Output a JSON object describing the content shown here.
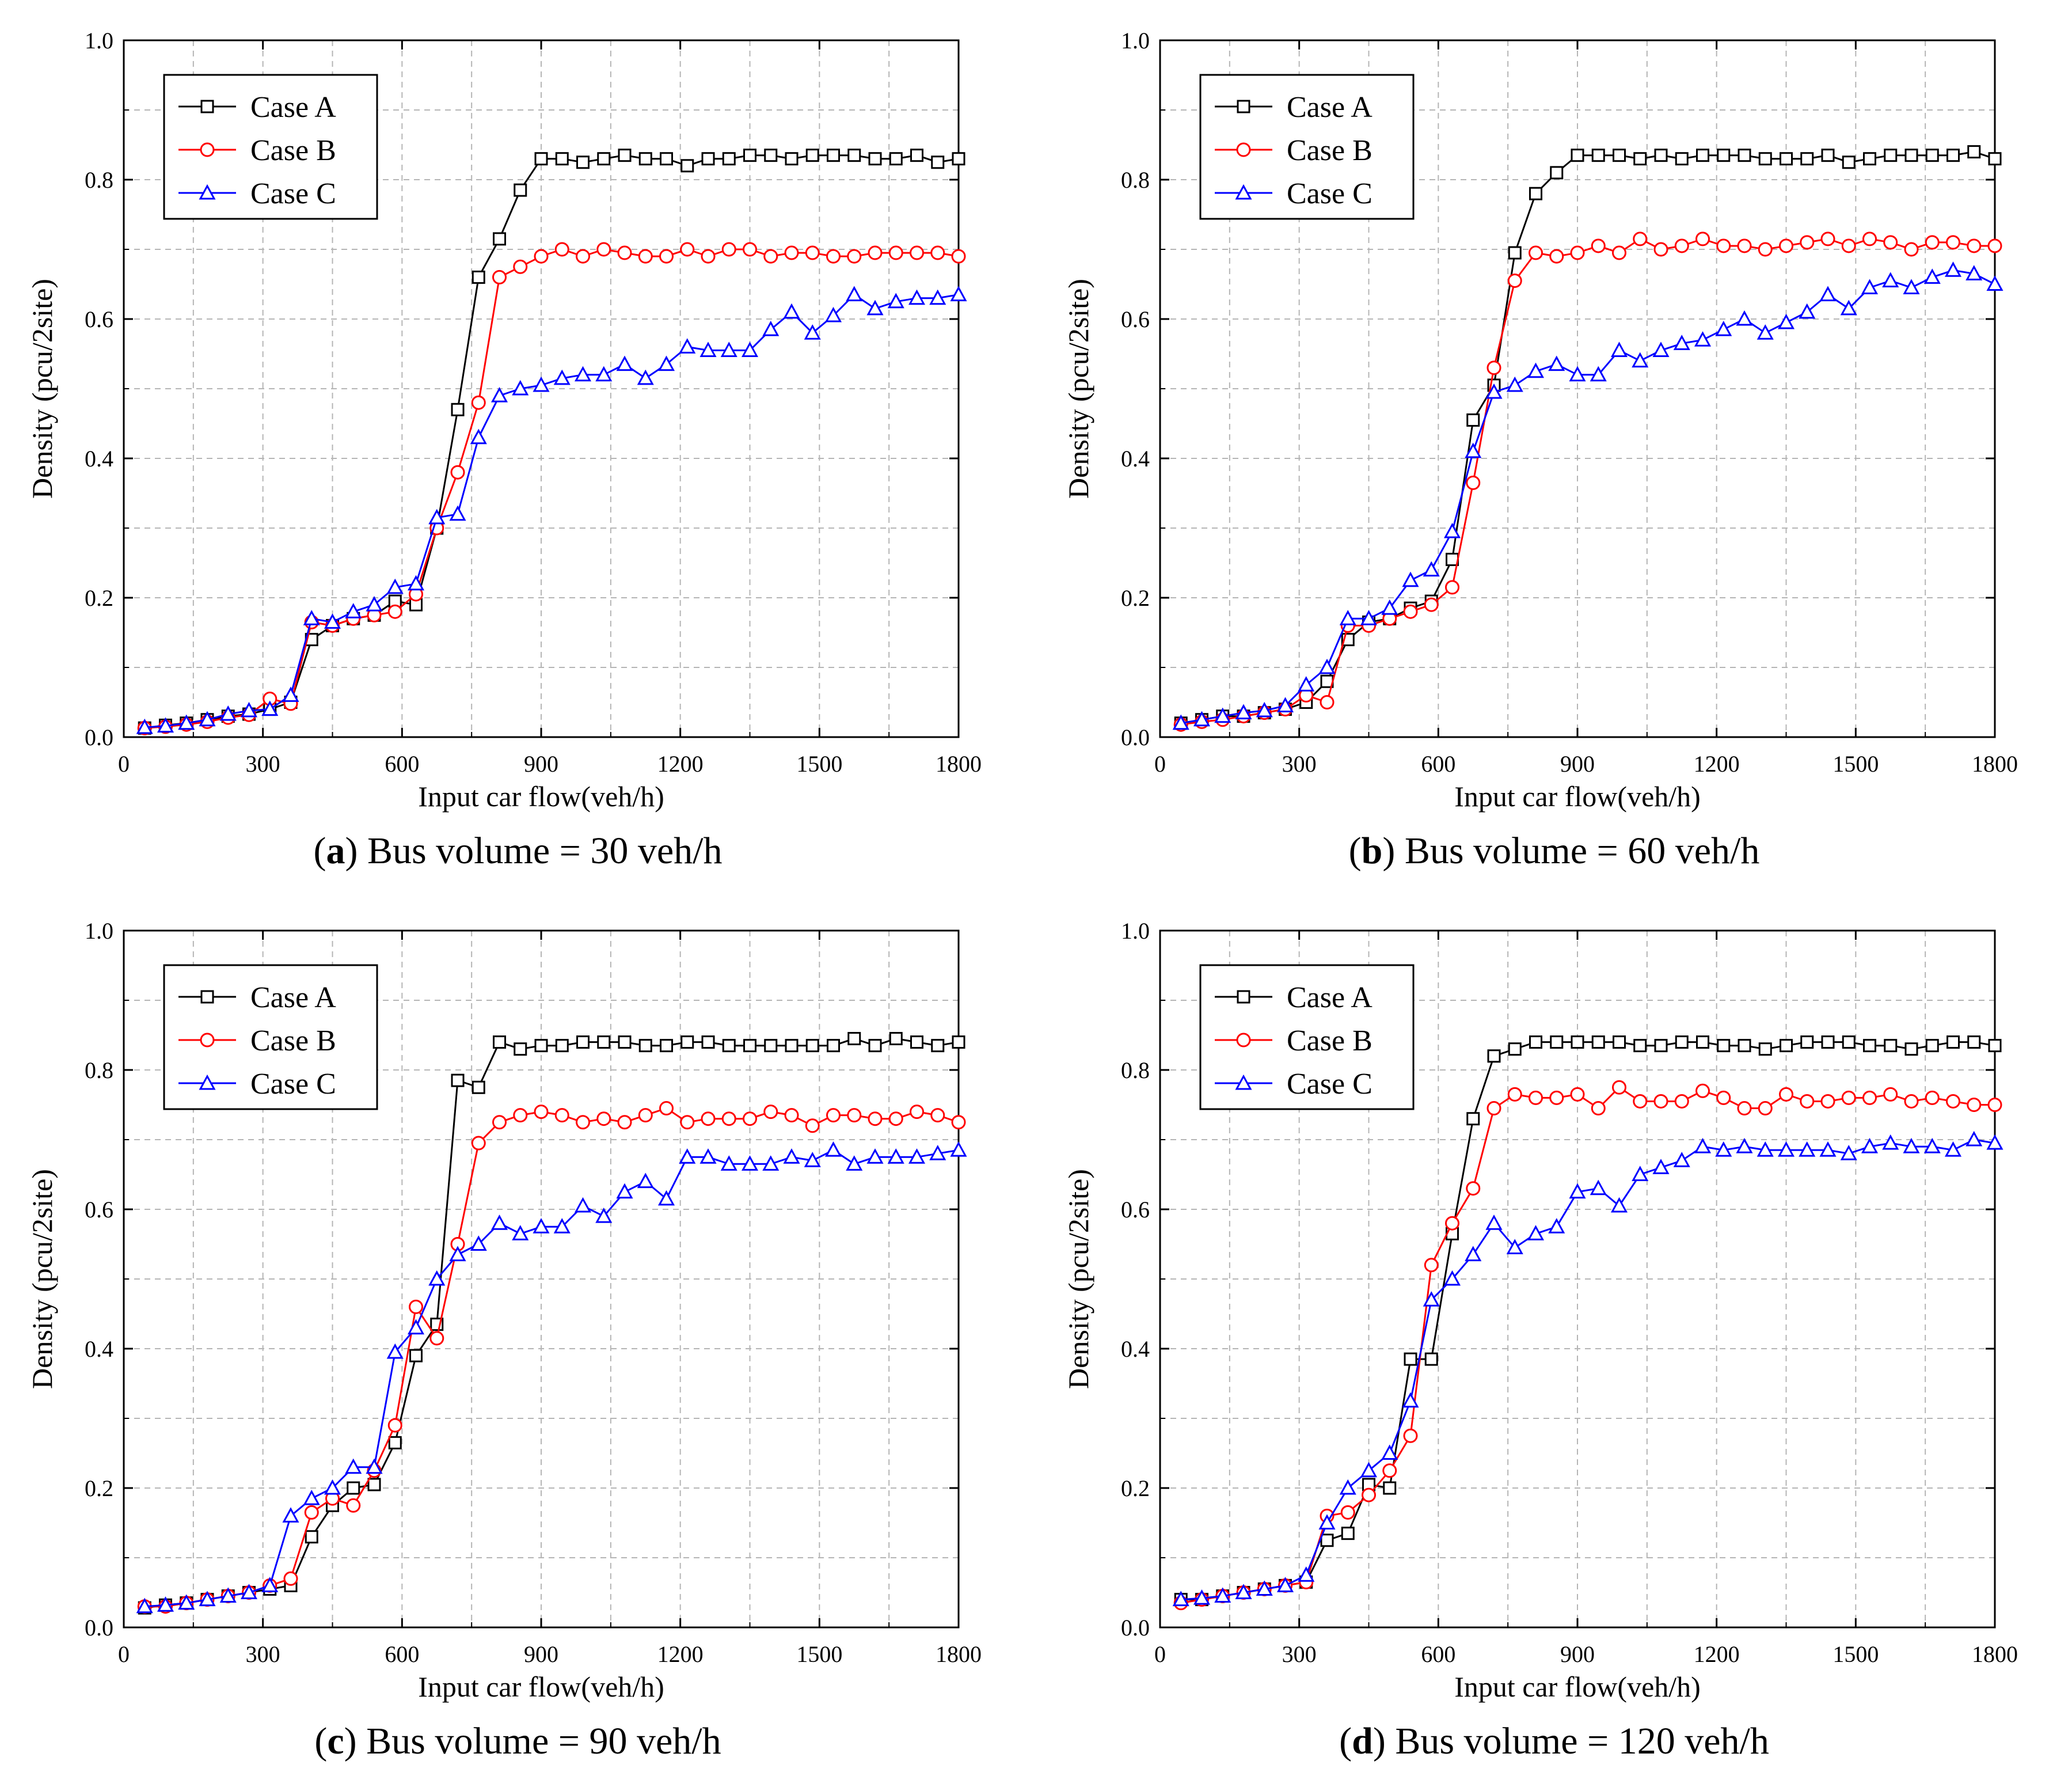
{
  "chart_data": [
    {
      "type": "line",
      "panel_label": "a",
      "caption_text": "Bus volume = 30 veh/h",
      "xlabel": "Input car flow(veh/h)",
      "ylabel": "Density (pcu/2site)",
      "xlim": [
        0,
        1800
      ],
      "ylim": [
        0,
        1.0
      ],
      "xticks": [
        "0",
        "300",
        "600",
        "900",
        "1200",
        "1500",
        "1800"
      ],
      "yticks": [
        "0.0",
        "0.2",
        "0.4",
        "0.6",
        "0.8",
        "1.0"
      ],
      "grid": true,
      "legend": "top-left",
      "x": [
        45,
        90,
        135,
        180,
        225,
        270,
        315,
        360,
        405,
        450,
        495,
        540,
        585,
        630,
        675,
        720,
        765,
        810,
        855,
        900,
        945,
        990,
        1035,
        1080,
        1125,
        1170,
        1215,
        1260,
        1305,
        1350,
        1395,
        1440,
        1485,
        1530,
        1575,
        1620,
        1665,
        1710,
        1755,
        1800
      ],
      "series": [
        {
          "name": "Case A",
          "color": "#000000",
          "marker": "square",
          "values": [
            0.013,
            0.017,
            0.02,
            0.025,
            0.03,
            0.033,
            0.04,
            0.05,
            0.14,
            0.16,
            0.17,
            0.175,
            0.195,
            0.19,
            0.3,
            0.47,
            0.66,
            0.715,
            0.785,
            0.83,
            0.83,
            0.825,
            0.83,
            0.835,
            0.83,
            0.83,
            0.82,
            0.83,
            0.83,
            0.835,
            0.835,
            0.83,
            0.835,
            0.835,
            0.835,
            0.83,
            0.83,
            0.835,
            0.825,
            0.83
          ]
        },
        {
          "name": "Case B",
          "color": "#ff0000",
          "marker": "circle",
          "values": [
            0.013,
            0.015,
            0.018,
            0.022,
            0.028,
            0.032,
            0.055,
            0.048,
            0.165,
            0.16,
            0.17,
            0.175,
            0.18,
            0.205,
            0.3,
            0.38,
            0.48,
            0.66,
            0.675,
            0.69,
            0.7,
            0.69,
            0.7,
            0.695,
            0.69,
            0.69,
            0.7,
            0.69,
            0.7,
            0.7,
            0.69,
            0.695,
            0.695,
            0.69,
            0.69,
            0.695,
            0.695,
            0.695,
            0.695,
            0.69
          ]
        },
        {
          "name": "Case C",
          "color": "#0000ff",
          "marker": "triangle",
          "values": [
            0.014,
            0.016,
            0.02,
            0.025,
            0.033,
            0.038,
            0.04,
            0.06,
            0.17,
            0.165,
            0.18,
            0.19,
            0.215,
            0.22,
            0.315,
            0.32,
            0.43,
            0.49,
            0.5,
            0.505,
            0.515,
            0.52,
            0.52,
            0.535,
            0.515,
            0.535,
            0.56,
            0.555,
            0.555,
            0.555,
            0.585,
            0.61,
            0.58,
            0.605,
            0.635,
            0.615,
            0.625,
            0.63,
            0.63,
            0.635
          ]
        }
      ]
    },
    {
      "type": "line",
      "panel_label": "b",
      "caption_text": "Bus volume = 60 veh/h",
      "xlabel": "Input car flow(veh/h)",
      "ylabel": "Density (pcu/2site)",
      "xlim": [
        0,
        1800
      ],
      "ylim": [
        0,
        1.0
      ],
      "xticks": [
        "0",
        "300",
        "600",
        "900",
        "1200",
        "1500",
        "1800"
      ],
      "yticks": [
        "0.0",
        "0.2",
        "0.4",
        "0.6",
        "0.8",
        "1.0"
      ],
      "grid": true,
      "legend": "top-left",
      "x": [
        45,
        90,
        135,
        180,
        225,
        270,
        315,
        360,
        405,
        450,
        495,
        540,
        585,
        630,
        675,
        720,
        765,
        810,
        855,
        900,
        945,
        990,
        1035,
        1080,
        1125,
        1170,
        1215,
        1260,
        1305,
        1350,
        1395,
        1440,
        1485,
        1530,
        1575,
        1620,
        1665,
        1710,
        1755,
        1800
      ],
      "series": [
        {
          "name": "Case A",
          "color": "#000000",
          "marker": "square",
          "values": [
            0.02,
            0.025,
            0.03,
            0.03,
            0.035,
            0.04,
            0.05,
            0.08,
            0.14,
            0.165,
            0.17,
            0.185,
            0.195,
            0.255,
            0.455,
            0.505,
            0.695,
            0.78,
            0.81,
            0.835,
            0.835,
            0.835,
            0.83,
            0.835,
            0.83,
            0.835,
            0.835,
            0.835,
            0.83,
            0.83,
            0.83,
            0.835,
            0.825,
            0.83,
            0.835,
            0.835,
            0.835,
            0.835,
            0.84,
            0.83
          ]
        },
        {
          "name": "Case B",
          "color": "#ff0000",
          "marker": "circle",
          "values": [
            0.018,
            0.022,
            0.025,
            0.03,
            0.035,
            0.04,
            0.06,
            0.05,
            0.16,
            0.16,
            0.17,
            0.18,
            0.19,
            0.215,
            0.365,
            0.53,
            0.655,
            0.695,
            0.69,
            0.695,
            0.705,
            0.695,
            0.715,
            0.7,
            0.705,
            0.715,
            0.705,
            0.705,
            0.7,
            0.705,
            0.71,
            0.715,
            0.705,
            0.715,
            0.71,
            0.7,
            0.71,
            0.71,
            0.705,
            0.705
          ]
        },
        {
          "name": "Case C",
          "color": "#0000ff",
          "marker": "triangle",
          "values": [
            0.02,
            0.025,
            0.03,
            0.035,
            0.038,
            0.045,
            0.075,
            0.1,
            0.17,
            0.17,
            0.185,
            0.225,
            0.24,
            0.295,
            0.41,
            0.495,
            0.505,
            0.525,
            0.535,
            0.52,
            0.52,
            0.555,
            0.54,
            0.555,
            0.565,
            0.57,
            0.585,
            0.6,
            0.58,
            0.595,
            0.61,
            0.635,
            0.615,
            0.645,
            0.655,
            0.645,
            0.66,
            0.67,
            0.665,
            0.65
          ]
        }
      ]
    },
    {
      "type": "line",
      "panel_label": "c",
      "caption_text": "Bus volume = 90 veh/h",
      "xlabel": "Input car flow(veh/h)",
      "ylabel": "Density (pcu/2site)",
      "xlim": [
        0,
        1800
      ],
      "ylim": [
        0,
        1.0
      ],
      "xticks": [
        "0",
        "300",
        "600",
        "900",
        "1200",
        "1500",
        "1800"
      ],
      "yticks": [
        "0.0",
        "0.2",
        "0.4",
        "0.6",
        "0.8",
        "1.0"
      ],
      "grid": true,
      "legend": "top-left",
      "x": [
        45,
        90,
        135,
        180,
        225,
        270,
        315,
        360,
        405,
        450,
        495,
        540,
        585,
        630,
        675,
        720,
        765,
        810,
        855,
        900,
        945,
        990,
        1035,
        1080,
        1125,
        1170,
        1215,
        1260,
        1305,
        1350,
        1395,
        1440,
        1485,
        1530,
        1575,
        1620,
        1665,
        1710,
        1755,
        1800
      ],
      "series": [
        {
          "name": "Case A",
          "color": "#000000",
          "marker": "square",
          "values": [
            0.028,
            0.032,
            0.035,
            0.04,
            0.045,
            0.05,
            0.055,
            0.06,
            0.13,
            0.175,
            0.2,
            0.205,
            0.265,
            0.39,
            0.435,
            0.785,
            0.775,
            0.84,
            0.83,
            0.835,
            0.835,
            0.84,
            0.84,
            0.84,
            0.835,
            0.835,
            0.84,
            0.84,
            0.835,
            0.835,
            0.835,
            0.835,
            0.835,
            0.835,
            0.845,
            0.835,
            0.845,
            0.84,
            0.835,
            0.84
          ]
        },
        {
          "name": "Case B",
          "color": "#ff0000",
          "marker": "circle",
          "values": [
            0.03,
            0.03,
            0.035,
            0.04,
            0.045,
            0.05,
            0.06,
            0.07,
            0.165,
            0.185,
            0.175,
            0.225,
            0.29,
            0.46,
            0.415,
            0.55,
            0.695,
            0.725,
            0.735,
            0.74,
            0.735,
            0.725,
            0.73,
            0.725,
            0.735,
            0.745,
            0.725,
            0.73,
            0.73,
            0.73,
            0.74,
            0.735,
            0.72,
            0.735,
            0.735,
            0.73,
            0.73,
            0.74,
            0.735,
            0.725
          ]
        },
        {
          "name": "Case C",
          "color": "#0000ff",
          "marker": "triangle",
          "values": [
            0.03,
            0.032,
            0.035,
            0.04,
            0.045,
            0.05,
            0.06,
            0.16,
            0.185,
            0.2,
            0.23,
            0.23,
            0.395,
            0.43,
            0.5,
            0.535,
            0.55,
            0.58,
            0.565,
            0.575,
            0.575,
            0.605,
            0.59,
            0.625,
            0.64,
            0.615,
            0.675,
            0.675,
            0.665,
            0.665,
            0.665,
            0.675,
            0.67,
            0.685,
            0.665,
            0.675,
            0.675,
            0.675,
            0.68,
            0.685
          ]
        }
      ]
    },
    {
      "type": "line",
      "panel_label": "d",
      "caption_text": "Bus volume = 120 veh/h",
      "xlabel": "Input car flow(veh/h)",
      "ylabel": "Density (pcu/2site)",
      "xlim": [
        0,
        1800
      ],
      "ylim": [
        0,
        1.0
      ],
      "xticks": [
        "0",
        "300",
        "600",
        "900",
        "1200",
        "1500",
        "1800"
      ],
      "yticks": [
        "0.0",
        "0.2",
        "0.4",
        "0.6",
        "0.8",
        "1.0"
      ],
      "grid": true,
      "legend": "top-left",
      "x": [
        45,
        90,
        135,
        180,
        225,
        270,
        315,
        360,
        405,
        450,
        495,
        540,
        585,
        630,
        675,
        720,
        765,
        810,
        855,
        900,
        945,
        990,
        1035,
        1080,
        1125,
        1170,
        1215,
        1260,
        1305,
        1350,
        1395,
        1440,
        1485,
        1530,
        1575,
        1620,
        1665,
        1710,
        1755,
        1800
      ],
      "series": [
        {
          "name": "Case A",
          "color": "#000000",
          "marker": "square",
          "values": [
            0.04,
            0.04,
            0.045,
            0.05,
            0.055,
            0.06,
            0.065,
            0.125,
            0.135,
            0.205,
            0.2,
            0.385,
            0.385,
            0.565,
            0.73,
            0.82,
            0.83,
            0.84,
            0.84,
            0.84,
            0.84,
            0.84,
            0.835,
            0.835,
            0.84,
            0.84,
            0.835,
            0.835,
            0.83,
            0.835,
            0.84,
            0.84,
            0.84,
            0.835,
            0.835,
            0.83,
            0.835,
            0.84,
            0.84,
            0.835
          ]
        },
        {
          "name": "Case B",
          "color": "#ff0000",
          "marker": "circle",
          "values": [
            0.035,
            0.04,
            0.045,
            0.05,
            0.055,
            0.06,
            0.065,
            0.16,
            0.165,
            0.19,
            0.225,
            0.275,
            0.52,
            0.58,
            0.63,
            0.745,
            0.765,
            0.76,
            0.76,
            0.765,
            0.745,
            0.775,
            0.755,
            0.755,
            0.755,
            0.77,
            0.76,
            0.745,
            0.745,
            0.765,
            0.755,
            0.755,
            0.76,
            0.76,
            0.765,
            0.755,
            0.76,
            0.755,
            0.75,
            0.75
          ]
        },
        {
          "name": "Case C",
          "color": "#0000ff",
          "marker": "triangle",
          "values": [
            0.04,
            0.042,
            0.045,
            0.05,
            0.055,
            0.06,
            0.075,
            0.15,
            0.2,
            0.225,
            0.25,
            0.325,
            0.47,
            0.5,
            0.535,
            0.58,
            0.545,
            0.565,
            0.575,
            0.625,
            0.63,
            0.605,
            0.65,
            0.66,
            0.67,
            0.69,
            0.685,
            0.69,
            0.685,
            0.685,
            0.685,
            0.685,
            0.68,
            0.69,
            0.695,
            0.69,
            0.69,
            0.685,
            0.7,
            0.695
          ]
        }
      ]
    }
  ]
}
